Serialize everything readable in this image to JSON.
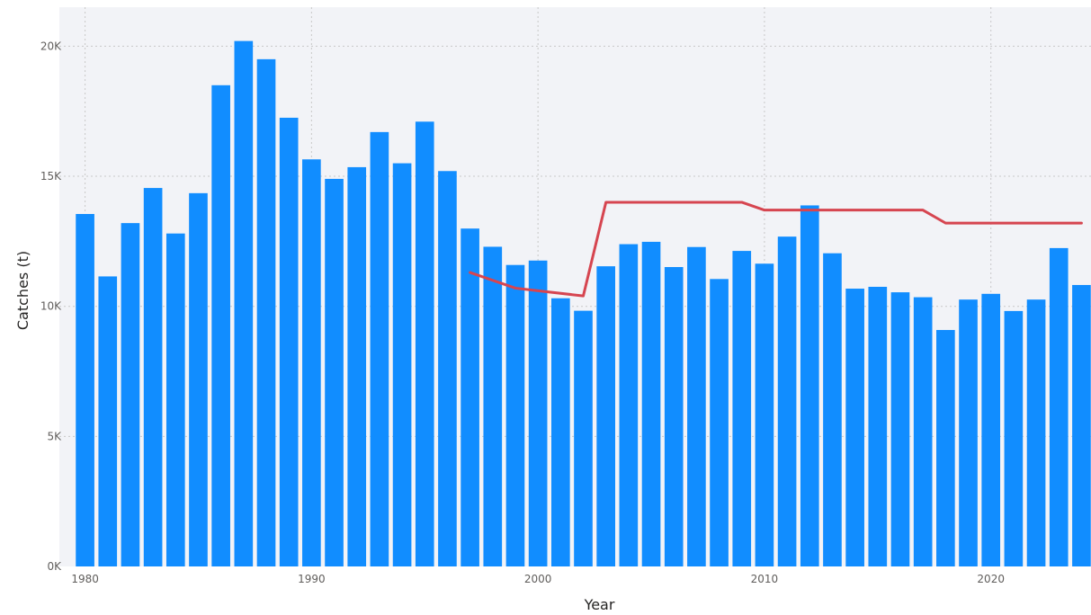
{
  "chart_data": {
    "type": "bar",
    "xlabel": "Year",
    "ylabel": "Catches (t)",
    "ylim": [
      0,
      21500
    ],
    "xlim": [
      1979.5,
      2024.5
    ],
    "y_ticks": [
      0,
      5000,
      10000,
      15000,
      20000
    ],
    "y_tick_labels": [
      "0K",
      "5K",
      "10K",
      "15K",
      "20K"
    ],
    "x_ticks": [
      1980,
      1990,
      2000,
      2010,
      2020
    ],
    "x_tick_labels": [
      "1980",
      "1990",
      "2000",
      "2010",
      "2020"
    ],
    "grid": true,
    "colors": {
      "bars": "#118dff",
      "line": "#d64550",
      "plot_background": "#f2f3f7",
      "grid": "#c8c8c8"
    },
    "series": [
      {
        "type": "bar",
        "x": [
          1980,
          1981,
          1982,
          1983,
          1984,
          1985,
          1986,
          1987,
          1988,
          1989,
          1990,
          1991,
          1992,
          1993,
          1994,
          1995,
          1996,
          1997,
          1998,
          1999,
          2000,
          2001,
          2002,
          2003,
          2004,
          2005,
          2006,
          2007,
          2008,
          2009,
          2010,
          2011,
          2012,
          2013,
          2014,
          2015,
          2016,
          2017,
          2018,
          2019,
          2020,
          2021,
          2022,
          2023,
          2024
        ],
        "values": [
          13550,
          11150,
          13200,
          14550,
          12800,
          14350,
          18500,
          20200,
          19500,
          17250,
          15650,
          14900,
          15350,
          16700,
          15500,
          17100,
          15200,
          12990,
          12290,
          11590,
          11760,
          10310,
          9830,
          11540,
          12390,
          12480,
          11510,
          12280,
          11050,
          12130,
          11640,
          12680,
          13880,
          12040,
          10680,
          10750,
          10540,
          10350,
          9090,
          10260,
          10480,
          9820,
          10260,
          12240,
          10820
        ]
      },
      {
        "type": "line",
        "x": [
          1997,
          1999,
          2000,
          2002,
          2003,
          2009,
          2010,
          2017,
          2018,
          2024
        ],
        "values": [
          11300,
          10700,
          10600,
          10400,
          14000,
          14000,
          13700,
          13700,
          13200,
          13200
        ]
      }
    ]
  }
}
